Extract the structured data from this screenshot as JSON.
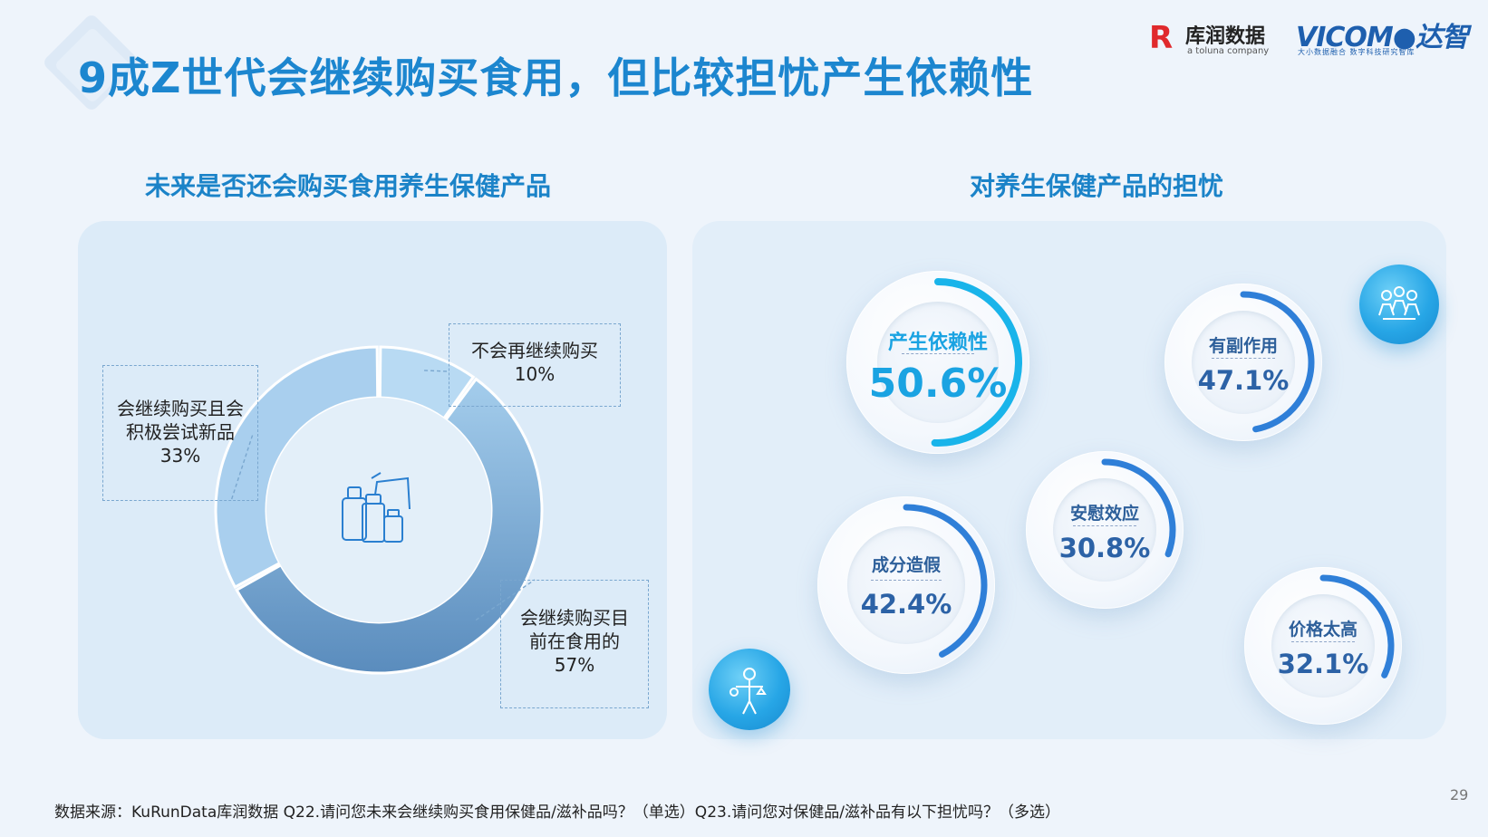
{
  "title": "9成Z世代会继续购买食用，但比较担忧产生依赖性",
  "logos": {
    "kurun_mark": "R",
    "kurun_name": "库润数据",
    "kurun_sub": "a toluna company",
    "vicom_name": "VICOM●达智",
    "vicom_sub": "大小数据融合 数字科技研究智库"
  },
  "left": {
    "section_title": "未来是否还会购买食用养生保健产品"
  },
  "right": {
    "section_title": "对养生保健产品的担忧"
  },
  "chart_data": [
    {
      "type": "pie",
      "title": "未来是否还会购买食用养生保健产品",
      "donut": true,
      "start_angle_deg": 0,
      "direction": "clockwise",
      "slices": [
        {
          "label": "不会再继续购买",
          "value": 10,
          "value_text": "10%",
          "color": "#b8daf3"
        },
        {
          "label": "会继续购买目前在食用的",
          "value": 57,
          "value_text": "57%",
          "color": "#6f9fcb"
        },
        {
          "label": "会继续购买且会积极尝试新品",
          "value": 33,
          "value_text": "33%",
          "color": "#a9cfee"
        }
      ],
      "label_lines": {
        "不会再继续购买": [
          "不会再继续购买",
          "10%"
        ],
        "会继续购买目前在食用的": [
          "会继续购买目",
          "前在食用的",
          "57%"
        ],
        "会继续购买且会积极尝试新品": [
          "会继续购买且会",
          "积极尝试新品",
          "33%"
        ]
      }
    },
    {
      "type": "bubble",
      "title": "对养生保健产品的担忧",
      "categories": [
        "产生依赖性",
        "有副作用",
        "安慰效应",
        "成分造假",
        "价格太高"
      ],
      "values": [
        50.6,
        47.1,
        30.8,
        42.4,
        32.1
      ],
      "value_texts": [
        "50.6%",
        "47.1%",
        "30.8%",
        "42.4%",
        "32.1%"
      ],
      "colors": {
        "产生依赖性": "#19b4ea",
        "有副作用": "#2f7fd8",
        "安慰效应": "#2f7fd8",
        "成分造假": "#2f7fd8",
        "价格太高": "#2f7fd8"
      },
      "highlight": "产生依赖性"
    }
  ],
  "footer": "数据来源：KuRunData库润数据 Q22.请问您未来会继续购买食用保健品/滋补品吗？（单选）Q23.请问您对保健品/滋补品有以下担忧吗？（多选）",
  "page_number": "29",
  "icons": {
    "center": "supplement-bottles-icon",
    "top_right": "crowd-icon",
    "bottom_left": "person-balance-icon"
  }
}
